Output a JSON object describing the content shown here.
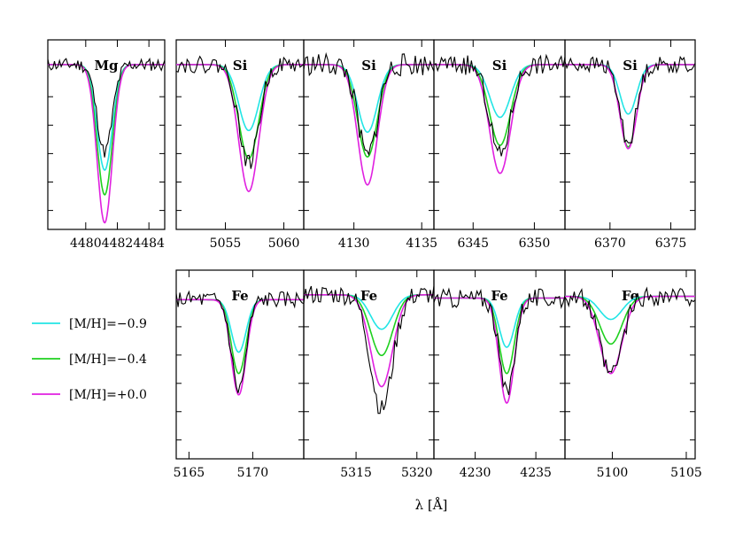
{
  "chart_data": {
    "type": "line",
    "xlabel": "λ [Å]",
    "colors": {
      "observed": "#000000",
      "[M/H]=-0.9": "#22e5e5",
      "[M/H]=-0.4": "#1fd01f",
      "[M/H]=+0.0": "#e020e0"
    },
    "legend": {
      "placement": "left of bottom row",
      "entries": [
        {
          "label": "[M/H]=−0.9",
          "color": "#22e5e5"
        },
        {
          "label": "[M/H]=−0.4",
          "color": "#1fd01f"
        },
        {
          "label": "[M/H]=+0.0",
          "color": "#e020e0"
        }
      ]
    },
    "y_axis": {
      "tick_labels": "none",
      "normalized_flux": true,
      "ylim": [
        0,
        1.15
      ]
    },
    "panels": [
      {
        "element": "Mg",
        "xlim": [
          4477.6,
          4485.0
        ],
        "xticks": [
          4480,
          4482,
          4484
        ],
        "xtick_labels": [
          "4480",
          "4482",
          "4484"
        ],
        "center": 4481.2,
        "sigma": 0.48,
        "continuum": 1.0,
        "depth_obs": 0.53,
        "depths_model": [
          0.64,
          0.79,
          0.96
        ],
        "noise": 0.04,
        "seed": 11
      },
      {
        "element": "Si",
        "xlim": [
          5050.8,
          5061.7
        ],
        "xticks": [
          5055,
          5060
        ],
        "xtick_labels": [
          "5055",
          "5060"
        ],
        "center": 5057.0,
        "sigma": 0.85,
        "continuum": 1.0,
        "depth_obs": 0.6,
        "depths_model": [
          0.4,
          0.57,
          0.77
        ],
        "noise": 0.05,
        "seed": 22
      },
      {
        "element": "Si",
        "xlim": [
          4126.3,
          4135.9
        ],
        "xticks": [
          4130,
          4135
        ],
        "xtick_labels": [
          "4130",
          "4135"
        ],
        "center": 4131.0,
        "sigma": 0.72,
        "continuum": 1.0,
        "depth_obs": 0.56,
        "depths_model": [
          0.41,
          0.56,
          0.73
        ],
        "noise": 0.07,
        "seed": 33
      },
      {
        "element": "Si",
        "xlim": [
          6341.8,
          6352.5
        ],
        "xticks": [
          6345,
          6350
        ],
        "xtick_labels": [
          "6345",
          "6350"
        ],
        "center": 6347.2,
        "sigma": 0.85,
        "continuum": 1.0,
        "depth_obs": 0.55,
        "depths_model": [
          0.32,
          0.49,
          0.66
        ],
        "noise": 0.06,
        "seed": 44
      },
      {
        "element": "Si",
        "xlim": [
          6366.3,
          6377.0
        ],
        "xticks": [
          6370,
          6375
        ],
        "xtick_labels": [
          "6370",
          "6375"
        ],
        "center": 6371.5,
        "sigma": 0.68,
        "continuum": 1.0,
        "depth_obs": 0.47,
        "depths_model": [
          0.3,
          0.5,
          0.51
        ],
        "noise": 0.05,
        "seed": 55
      },
      {
        "element": "Fe",
        "xlim": [
          5164.0,
          5174.0
        ],
        "xticks": [
          5165,
          5170
        ],
        "xtick_labels": [
          "5165",
          "5170"
        ],
        "center": 5168.9,
        "sigma": 0.58,
        "continuum": 0.97,
        "depth_obs": 0.55,
        "depths_model": [
          0.32,
          0.45,
          0.58
        ],
        "noise": 0.05,
        "seed": 66
      },
      {
        "element": "Fe",
        "xlim": [
          5310.7,
          5321.4
        ],
        "xticks": [
          5315,
          5320
        ],
        "xtick_labels": [
          "5315",
          "5320"
        ],
        "center": 5317.1,
        "sigma": 0.9,
        "continuum": 1.0,
        "depth_obs": 0.7,
        "depths_model": [
          0.21,
          0.37,
          0.56
        ],
        "noise": 0.06,
        "seed": 77
      },
      {
        "element": "Fe",
        "xlim": [
          4226.6,
          4237.4
        ],
        "xticks": [
          4230,
          4235
        ],
        "xtick_labels": [
          "4230",
          "4235"
        ],
        "center": 4232.6,
        "sigma": 0.62,
        "continuum": 0.98,
        "depth_obs": 0.58,
        "depths_model": [
          0.3,
          0.46,
          0.64
        ],
        "noise": 0.06,
        "seed": 88
      },
      {
        "element": "Fe",
        "xlim": [
          5096.8,
          5105.6
        ],
        "xticks": [
          5100,
          5105
        ],
        "xtick_labels": [
          "5100",
          "5105"
        ],
        "center": 5099.9,
        "sigma": 0.75,
        "continuum": 0.99,
        "depth_obs": 0.48,
        "depths_model": [
          0.14,
          0.29,
          0.47
        ],
        "noise": 0.06,
        "seed": 99
      }
    ]
  }
}
